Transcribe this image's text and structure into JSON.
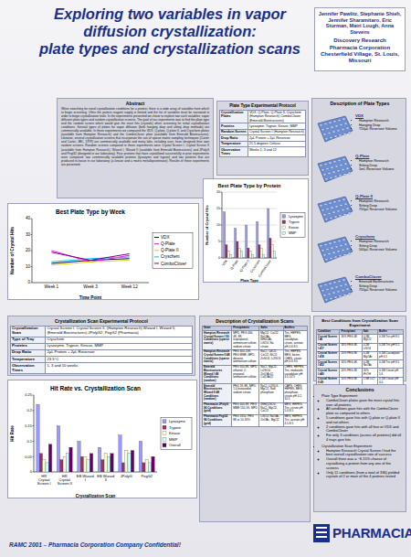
{
  "header": {
    "title_lines": [
      "Exploring two variables in vapor",
      "diffusion crystallization:",
      "plate types and crystallization scans"
    ],
    "authors": "Jennifer Pawlitz, Stephanie Shieh, Jennifer Sharamitaro, Eric Sturman, Mairi Lough, Anna Stevens",
    "affiliation": [
      "Discovery Research",
      "Pharmacia Corporation",
      "Chesterfield Village, St. Louis, Missouri"
    ]
  },
  "abstract": {
    "title": "Abstract",
    "text": "When searching for novel crystallization conditions for a protein, there is a wide array of variables from which to begin screening. Often the protein reagent supply is limited and the list of variables must be narrowed in order to begin crystallization trials. In the experiments presented we chose to explore two such variables: vapor diffusion plate-types and random crystallization screens. The goal of our experiments was to find the plate-type and the random screen which would give the most hits (crystals) when screening for initial crystallization conditions. Several types of plates for vapor diffusion (both hanging drop and sitting drop methods) are commercially available. In these experiments we compared the VDX, Q-plate, Q-plate II, and Cryschem plates (available from Hampton Research) and the ComboClover plate (available from Emerald Biostructures). Likewise, several crystallization screens that incorporate the use of sparse matrix sampling techniques (Carter and Carter, JBC, 1979) are commercially available and many labs, including ours, have designed their own random screens. Random screens compared in these experiments were Crystal Screen I, Crystal Screen II (available from Hampton Research), Wizard I, Wizard II (available from Emerald Biostructures) and JPolyG and PegG2 (designed in our laboratory). Four proteins that have crystallized successfully in prior experiments were compared: two commercially available proteins (lysozyme and trypsin) and two proteins that are produced in-house in our laboratory (a kinase and a matrix metalloproteinase). Results of these experiments are presented."
  },
  "plate_protocol": {
    "title": "Plate Type Experimental Protocol",
    "rows": [
      [
        "Crystallization Plates",
        "VDX, Q-Plate, Q-Plate II, Cryschem (Hampton Research) ComboClover (Emerald Biostructures)"
      ],
      [
        "Proteins",
        "Lysozyme, Trypsin, Kinase, MMP"
      ],
      [
        "Random Screen",
        "Crystal Screen I (Hampton Research)"
      ],
      [
        "Drop Ratio",
        "2µL Protein + 2µL Reservoir"
      ],
      [
        "Temperature",
        "21.5 degrees Celsius"
      ],
      [
        "Observation Times",
        "Weeks 1, 3 and 12"
      ]
    ]
  },
  "plate_types": {
    "title": "Description of Plate Types",
    "items": [
      {
        "name": "VDX",
        "lines": [
          "Hampton Research",
          "Hanging Drop",
          "750µL Reservoir Volume"
        ]
      },
      {
        "name": "Q-Plate",
        "lines": [
          "Hampton Research",
          "Sitting Drop",
          "1mL Reservoir Volume"
        ]
      },
      {
        "name": "Q-Plate II",
        "lines": [
          "Hampton Research",
          "Sitting Drop",
          "750µL Reservoir Volume"
        ]
      },
      {
        "name": "Cryschem",
        "lines": [
          "Hampton Research",
          "Sitting Drop",
          "500µL Reservoir Volume"
        ]
      },
      {
        "name": "ComboClover",
        "lines": [
          "Emerald BioStructures",
          "Sitting Drop",
          "750µL Reservoir Volume"
        ]
      }
    ]
  },
  "scan_protocol": {
    "title": "Crystallization Scan Experimental Protocol",
    "rows": [
      [
        "Crystallization Scan",
        "Crystal Screen I, Crystal Screen II, (Hampton Research) Wizard I, Wizard II, (Emerald Biostructures) JPolyG2, PegG2 (Pharmacia)"
      ],
      [
        "Type of Tray",
        "Cryschem"
      ],
      [
        "Proteins",
        "Lysozyme, Trypsin, Kinase, MMP"
      ],
      [
        "Drop Ratio",
        "2µL Protein + 2µL Reservoir"
      ],
      [
        "Temperature",
        "23.5°C"
      ],
      [
        "Observation Times",
        "1, 3 and 10 weeks"
      ]
    ]
  },
  "scan_description": {
    "title": "Description of Crystallization Scans",
    "header": [
      "Scan",
      "Precipitants",
      "Salts",
      "Buffers"
    ],
    "rows": [
      [
        "Hampton Research Crystal Screen I 50 Conditions (sparse matrix)",
        "MPD, PEG 400, 4K, 8K, isopropanol, ammonium sulfate, sodium citrate",
        "MgCl2, CaCl2, NaOAc, NH4OAc, LiSO4, Na citrate",
        "Tris, HEPES, MES, cacodylate, citrate, acetate pH 4.6-8.5"
      ],
      [
        "Hampton Research Crystal Screen II 48 Conditions (sparse matrix)",
        "PEG 400-20K, PEG MME, MPD, dioxane, ammonium sulfate",
        "NaCl, CdCl2, CoCl2, NiCl2, ZnSO4, Li2SO4",
        "Tris, HEPES, MES, bicine, CHES, citrate pH 4.6-9.0"
      ],
      [
        "Emerald Biostructures Wizard I 48 Conditions (random)",
        "PEG 400-8K, MPD, ethanol, 2-propanol, ammonium sulfate",
        "NaCl, MgCl2, Li2SO4, Zn(OAc)2, Ca(OAc)2",
        "CHES, HEPES, Tris, imidazole, cacodylate pH 4.5-10.5"
      ],
      [
        "Emerald Biostructures Wizard II 48 Conditions (random)",
        "PEG 1K-8K, MPD, 1,4-butanediol, sodium citrate",
        "NaCl, Li2SO4, MgCl2, NaK phosphate",
        "CAPS, CHES, HEPES, MES, phosphate-citrate pH 4.2-10.5"
      ],
      [
        "Pharmacia JPolyG 96 Conditions (grid)",
        "PEG 400-8K, PEG MME 550-5K, MPD",
        "(NH4)2SO4, NaCl, MgCl2, CaCl2",
        "MES, HEPES, Tris, citrate pH 5.0-8.5"
      ],
      [
        "Pharmacia PegG2 96 Conditions (grid)",
        "PEG 3350, PEG 8K at 10-30%",
        "LiSO4, NaOAc, ZnOAc, MgCl2",
        "MES, HEPES, Tris, acetate pH 4.5-8.5"
      ]
    ]
  },
  "best_conditions": {
    "title": "Best Conditions from Crystallization Scan Experiment",
    "header": [
      "Condition",
      "Precipitant",
      "Salt",
      "Buffer"
    ],
    "rows": [
      [
        "Crystal Screen I #6",
        "30% PEG 4K",
        "0.2M MgCl2",
        "0.1M Tris pH 8.5"
      ],
      [
        "Crystal Screen I #17",
        "30% PEG 4K",
        "0.2M LiSO4",
        "0.1M Tris pH 8.5"
      ],
      [
        "Crystal Screen I #18",
        "20% PEG 8K",
        "0.2M MgOAc",
        "0.1M Cacodylate pH 6.5"
      ],
      [
        "Crystal Screen I #22",
        "30% PEG 4K",
        "0.2M NaOAc",
        "0.1M Tris pH 8.5"
      ],
      [
        "Crystal Screen I #40",
        "20% PEG 4K",
        "20% iPrOH",
        "0.1M Citrate pH 5.6"
      ],
      [
        "Crystal Screen II #9",
        "10% PEG 6K",
        "1.0M LiCl",
        "0.1M Citrate pH 4.0"
      ],
      [
        "Wizard I #27",
        "20% PEG 3K",
        "0.2M NaCl",
        "0.1M HEPES pH 7.5"
      ],
      [
        "JPolyG #31",
        "20% PEG 2K MME",
        "0.2M AS",
        "0.1M MES pH 6.5"
      ],
      [
        "PegG2 #58",
        "25% PEG 8K",
        "0.2M ZnOAc",
        "0.1M Cacodylate pH 6.5"
      ]
    ]
  },
  "conclusions": {
    "title": "Conclusions",
    "items": [
      {
        "text": "Plate Type Experiment:",
        "sub": [
          "ComboClover plates gave the most crystal hits over all proteins",
          "All conditions gave hits with the ComboClover plate as compared to others",
          "5 conditions gave hits with Q-plate or Q-plate II and not others",
          "2 conditions gave hits with all four or VDX and ComboClover",
          "For only 3 conditions (across all proteins) did all 4 trays give hits"
        ]
      },
      {
        "text": "Crystallization Scan Experiment:",
        "sub": [
          "Hampton Research Crystal Screen I had the best overall crystallization rate of success",
          "Overall there was a ~8-15% chance of crystallizing a protein from any one of the screens",
          "Only 11 conditions (from a total of 336) yielded crystals of 2 or more of the 4 proteins tested"
        ]
      }
    ]
  },
  "footer": "RAMC 2001 – Pharmacia Corporation Company Confidential!",
  "logo": "PHARMACIA",
  "chart_data": [
    {
      "type": "line",
      "title": "Best Plate Type by Week",
      "categories": [
        "Week 1",
        "Week 3",
        "Week 12"
      ],
      "x_label": "Time Point",
      "y_label": "Number of Crystal Hits",
      "ylim": [
        0,
        40
      ],
      "yticks": [
        0,
        10,
        20,
        30,
        40
      ],
      "grid": false,
      "legend": "right",
      "series": [
        {
          "name": "VDX",
          "color": "#000080",
          "values": [
            12,
            14,
            15
          ]
        },
        {
          "name": "Q-Plate",
          "color": "#ff00ff",
          "values": [
            20,
            13,
            17
          ]
        },
        {
          "name": "Q-Plate II",
          "color": "#e0d000",
          "values": [
            11,
            13,
            14
          ]
        },
        {
          "name": "Cryschem",
          "color": "#00c8e0",
          "values": [
            13,
            15,
            16
          ]
        },
        {
          "name": "ComboClover",
          "color": "#800080",
          "values": [
            19,
            14,
            18
          ]
        }
      ]
    },
    {
      "type": "bar",
      "title": "Best Plate Type by Protein",
      "categories": [
        "VDX",
        "Q-Plate",
        "Q-Plate II",
        "Cryschem",
        "ComboClover"
      ],
      "x_label": "Plate Type",
      "y_label": "Number of Crystal Hits",
      "ylim": [
        0,
        20
      ],
      "yticks": [
        0,
        5,
        10,
        15,
        20
      ],
      "grid": true,
      "legend": "right",
      "series": [
        {
          "name": "Lysozyme",
          "color": "#9999ff",
          "values": [
            14,
            9,
            10,
            11,
            15
          ]
        },
        {
          "name": "Trypsin",
          "color": "#993366",
          "values": [
            4,
            5,
            3,
            4,
            6
          ]
        },
        {
          "name": "Kinase",
          "color": "#ffffcc",
          "values": [
            2,
            3,
            2,
            3,
            4
          ]
        },
        {
          "name": "MMP",
          "color": "#ccffff",
          "values": [
            1,
            2,
            1,
            1,
            2
          ]
        }
      ]
    },
    {
      "type": "bar",
      "title": "Hit Rate vs. Crystallization Scan",
      "categories": [
        "HR Crystal Screen I",
        "HR Crystal Screen II",
        "EB Wizard I",
        "EB Wizard II",
        "JPolyG",
        "PegG2"
      ],
      "x_label": "Crystallization Scan",
      "y_label": "Hit Rate",
      "ylim": [
        0,
        0.25
      ],
      "yticks": [
        0,
        0.05,
        0.1,
        0.15,
        0.2,
        0.25
      ],
      "grid": false,
      "legend": "right",
      "series": [
        {
          "name": "Lysozyme",
          "color": "#9999ff",
          "values": [
            0.22,
            0.15,
            0.1,
            0.08,
            0.12,
            0.1
          ]
        },
        {
          "name": "Trypsin",
          "color": "#993366",
          "values": [
            0.06,
            0.04,
            0.05,
            0.04,
            0.03,
            0.03
          ]
        },
        {
          "name": "Kinase",
          "color": "#ffffcc",
          "values": [
            0.04,
            0.05,
            0.05,
            0.06,
            0.07,
            0.04
          ]
        },
        {
          "name": "MMP",
          "color": "#ccffff",
          "values": [
            0.03,
            0.06,
            0.04,
            0.05,
            0.06,
            0.03
          ]
        },
        {
          "name": "Overall",
          "color": "#660066",
          "values": [
            0.09,
            0.08,
            0.06,
            0.06,
            0.07,
            0.05
          ]
        }
      ]
    }
  ]
}
